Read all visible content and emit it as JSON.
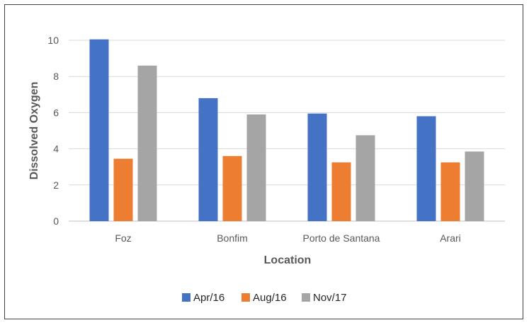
{
  "chart_data": {
    "type": "bar",
    "title": "",
    "xlabel": "Location",
    "ylabel": "Dissolved Oxygen",
    "ylim": [
      0,
      10
    ],
    "yticks": [
      0,
      2,
      4,
      6,
      8,
      10
    ],
    "grid": true,
    "legend_position": "bottom",
    "categories": [
      "Foz",
      "Bonfim",
      "Porto de Santana",
      "Arari"
    ],
    "series": [
      {
        "name": "Apr/16",
        "color": "#4472C4",
        "values": [
          10.05,
          6.8,
          5.95,
          5.8
        ]
      },
      {
        "name": "Aug/16",
        "color": "#ED7D31",
        "values": [
          3.45,
          3.6,
          3.25,
          3.25
        ]
      },
      {
        "name": "Nov/17",
        "color": "#A5A5A5",
        "values": [
          8.6,
          5.9,
          4.75,
          3.85
        ]
      }
    ]
  }
}
